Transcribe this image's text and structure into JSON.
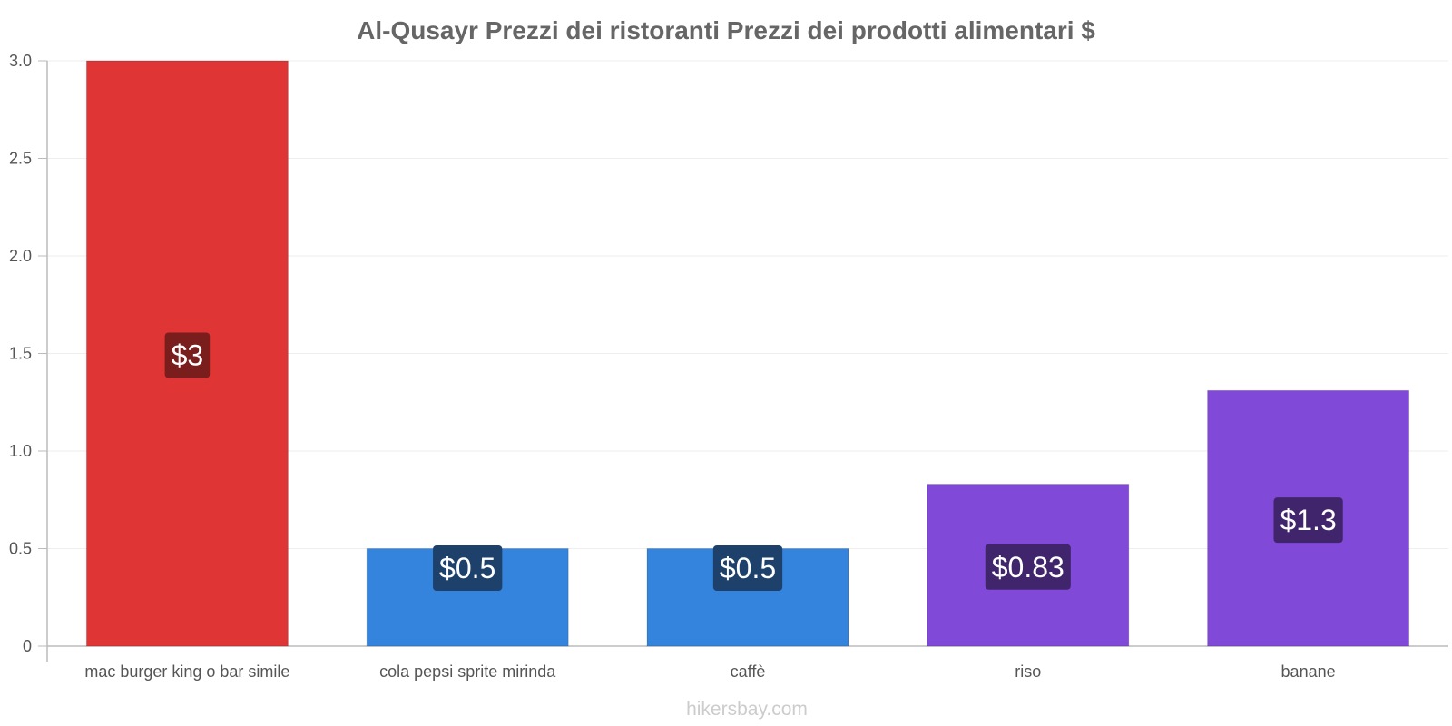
{
  "chart_data": {
    "type": "bar",
    "title": "Al-Qusayr Prezzi dei ristoranti Prezzi dei prodotti alimentari $",
    "xlabel": "",
    "ylabel": "",
    "ylim": [
      0,
      3.0
    ],
    "yticks": [
      "0",
      "0.5",
      "1.0",
      "1.5",
      "2.0",
      "2.5",
      "3.0"
    ],
    "ytick_values": [
      0,
      0.5,
      1.0,
      1.5,
      2.0,
      2.5,
      3.0
    ],
    "categories": [
      "mac burger king o bar simile",
      "cola pepsi sprite mirinda",
      "caffè",
      "riso",
      "banane"
    ],
    "values": [
      3,
      0.5,
      0.5,
      0.83,
      1.31
    ],
    "data_labels": [
      "$3",
      "$0.5",
      "$0.5",
      "$0.83",
      "$1.3"
    ],
    "bar_colors": [
      "#e03535",
      "#3483dd",
      "#3483dd",
      "#8049d8",
      "#8049d8"
    ],
    "label_bg_colors": [
      "#7a1d1d",
      "#1e416c",
      "#1e416c",
      "#41256c",
      "#41256c"
    ],
    "grid": true
  },
  "watermark": "hikersbay.com"
}
